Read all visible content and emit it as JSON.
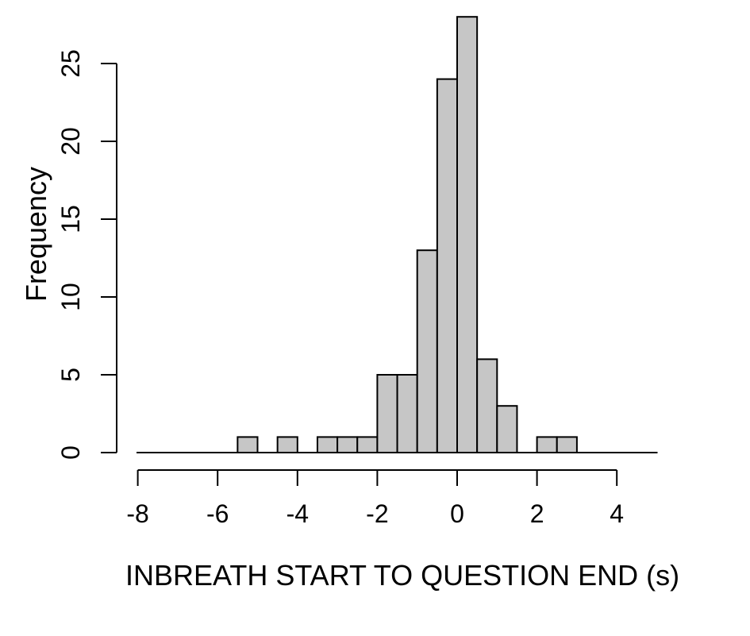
{
  "figure": {
    "background": "#ffffff",
    "bar_fill": "#c6c6c6",
    "bar_stroke": "#000000",
    "axis_color": "#000000",
    "text_color": "#000000"
  },
  "chart_data": {
    "type": "bar",
    "subtype": "histogram",
    "title": "",
    "xlabel": "INBREATH START TO QUESTION END (s)",
    "ylabel": "Frequency",
    "bin_start": -5.5,
    "bin_width": 0.5,
    "counts": [
      1,
      0,
      1,
      0,
      1,
      1,
      1,
      5,
      5,
      13,
      24,
      28,
      6,
      3,
      0,
      1,
      1
    ],
    "bins": [
      {
        "range": [
          -5.5,
          -5.0
        ],
        "count": 1
      },
      {
        "range": [
          -5.0,
          -4.5
        ],
        "count": 0
      },
      {
        "range": [
          -4.5,
          -4.0
        ],
        "count": 1
      },
      {
        "range": [
          -4.0,
          -3.5
        ],
        "count": 0
      },
      {
        "range": [
          -3.5,
          -3.0
        ],
        "count": 1
      },
      {
        "range": [
          -3.0,
          -2.5
        ],
        "count": 1
      },
      {
        "range": [
          -2.5,
          -2.0
        ],
        "count": 1
      },
      {
        "range": [
          -2.0,
          -1.5
        ],
        "count": 5
      },
      {
        "range": [
          -1.5,
          -1.0
        ],
        "count": 5
      },
      {
        "range": [
          -1.0,
          -0.5
        ],
        "count": 13
      },
      {
        "range": [
          -0.5,
          0.0
        ],
        "count": 24
      },
      {
        "range": [
          0.0,
          0.5
        ],
        "count": 28
      },
      {
        "range": [
          0.5,
          1.0
        ],
        "count": 6
      },
      {
        "range": [
          1.0,
          1.5
        ],
        "count": 3
      },
      {
        "range": [
          1.5,
          2.0
        ],
        "count": 0
      },
      {
        "range": [
          2.0,
          2.5
        ],
        "count": 1
      },
      {
        "range": [
          2.5,
          3.0
        ],
        "count": 1
      }
    ],
    "x_ticks": [
      -8,
      -6,
      -4,
      -2,
      0,
      2,
      4
    ],
    "y_ticks": [
      0,
      5,
      10,
      15,
      20,
      25
    ],
    "xlim": [
      -8,
      5
    ],
    "ylim": [
      0,
      28
    ],
    "grid": false,
    "legend": "none"
  }
}
